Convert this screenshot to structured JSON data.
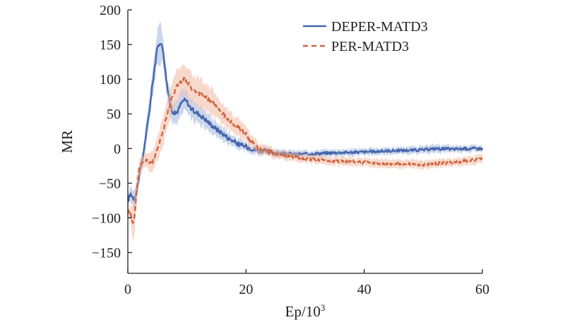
{
  "chart_data": {
    "type": "line",
    "title": "",
    "xlabel": "Ep/10",
    "xlabel_superscript": "3",
    "ylabel": "MR",
    "xlim": [
      0,
      60
    ],
    "ylim": [
      -180,
      200
    ],
    "xticks": [
      0,
      20,
      40,
      60
    ],
    "yticks": [
      200,
      150,
      100,
      50,
      0,
      -50,
      -100,
      -150
    ],
    "xtick_labels": [
      "0",
      "20",
      "40",
      "60"
    ],
    "ytick_labels": [
      "200",
      "150",
      "100",
      "50",
      "0",
      "−50",
      "−100",
      "−150"
    ],
    "grid": false,
    "legend_position": "top-right",
    "series": [
      {
        "name": "DEPER-MATD3",
        "color": "#4666ad",
        "band_color": "#9fb4da",
        "style": "solid",
        "x": [
          0,
          0.5,
          1,
          1.5,
          2,
          2.5,
          3,
          3.5,
          4,
          4.5,
          5,
          5.5,
          6,
          6.5,
          7,
          7.5,
          8,
          8.5,
          9,
          9.5,
          10,
          10.5,
          11,
          11.5,
          12,
          13,
          14,
          15,
          16,
          17,
          18,
          19,
          20,
          21,
          22,
          24,
          26,
          28,
          30,
          35,
          40,
          45,
          50,
          52,
          55,
          58,
          60
        ],
        "y": [
          -75,
          -65,
          -72,
          -62,
          -35,
          -15,
          15,
          45,
          80,
          115,
          145,
          155,
          140,
          100,
          70,
          55,
          50,
          55,
          65,
          70,
          68,
          60,
          55,
          52,
          50,
          43,
          35,
          28,
          22,
          15,
          10,
          5,
          3,
          0,
          -3,
          -5,
          -7,
          -8,
          -8,
          -6,
          -5,
          -3,
          -2,
          0,
          -1,
          0,
          0
        ],
        "band": [
          8,
          12,
          12,
          12,
          12,
          12,
          14,
          16,
          18,
          20,
          24,
          26,
          22,
          18,
          16,
          16,
          16,
          16,
          16,
          15,
          15,
          14,
          14,
          14,
          14,
          12,
          12,
          10,
          10,
          9,
          8,
          7,
          6,
          6,
          6,
          5,
          5,
          5,
          5,
          5,
          5,
          5,
          5,
          6,
          5,
          5,
          5
        ]
      },
      {
        "name": "PER-MATD3",
        "color": "#d0633f",
        "band_color": "#f0b9a2",
        "style": "dashed",
        "x": [
          0,
          0.5,
          1,
          1.5,
          2,
          2.5,
          3,
          3.5,
          4,
          4.5,
          5,
          5.5,
          6,
          6.5,
          7,
          7.5,
          8,
          8.5,
          9,
          9.5,
          10,
          11,
          12,
          13,
          14,
          15,
          16,
          17,
          18,
          19,
          20,
          21,
          22,
          24,
          26,
          28,
          30,
          35,
          40,
          45,
          50,
          55,
          60
        ],
        "y": [
          -90,
          -95,
          -110,
          -60,
          -25,
          -20,
          -15,
          -18,
          -20,
          -15,
          0,
          15,
          25,
          45,
          60,
          75,
          85,
          92,
          97,
          100,
          95,
          85,
          80,
          75,
          70,
          60,
          50,
          42,
          35,
          30,
          20,
          10,
          0,
          -5,
          -10,
          -12,
          -15,
          -18,
          -20,
          -22,
          -23,
          -20,
          -15
        ],
        "band": [
          8,
          12,
          30,
          20,
          12,
          10,
          10,
          12,
          14,
          16,
          18,
          18,
          20,
          20,
          22,
          22,
          22,
          22,
          22,
          22,
          22,
          20,
          20,
          20,
          20,
          18,
          16,
          14,
          13,
          12,
          10,
          9,
          8,
          7,
          6,
          6,
          6,
          6,
          6,
          6,
          6,
          6,
          6
        ]
      }
    ]
  }
}
